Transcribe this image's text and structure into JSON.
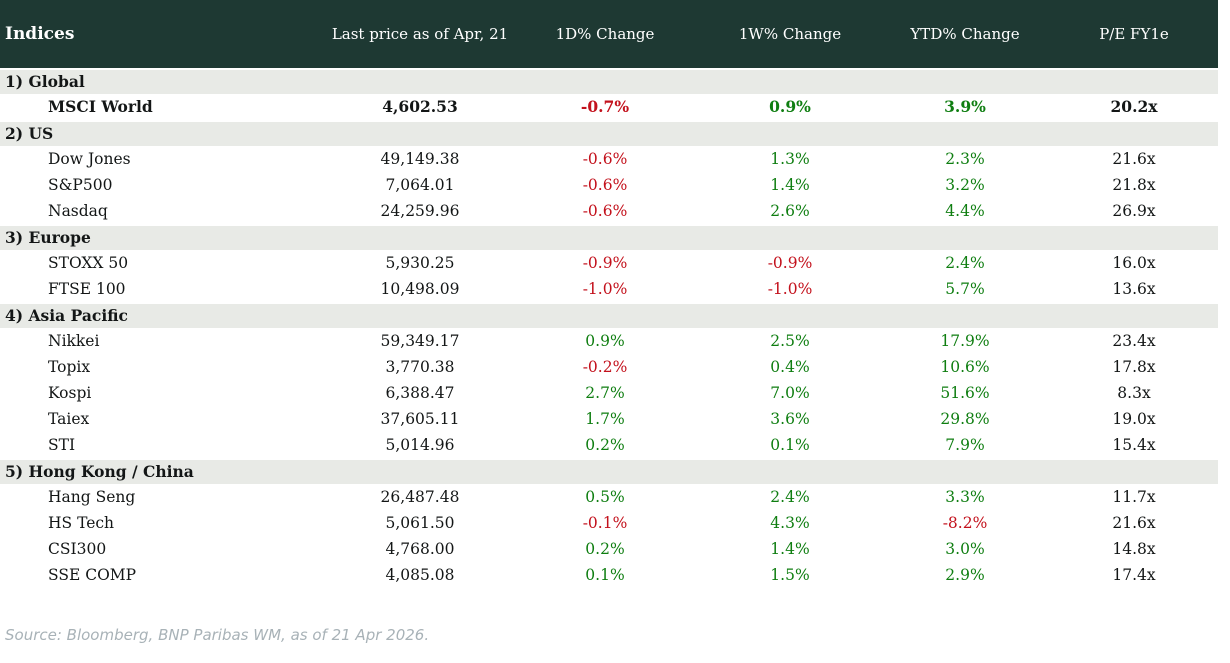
{
  "title": "Indices",
  "chart_data": {
    "type": "table",
    "columns": [
      "Indices",
      "Last price as of Apr, 21",
      "1D% Change",
      "1W% Change",
      "YTD% Change",
      "P/E FY1e"
    ],
    "sections": [
      {
        "label": "1) Global",
        "rows": [
          {
            "name": "MSCI World",
            "bold": true,
            "values": [
              "4,602.53",
              "-0.7%",
              "0.9%",
              "3.9%",
              "20.2x"
            ]
          }
        ]
      },
      {
        "label": "2) US",
        "rows": [
          {
            "name": "Dow Jones",
            "bold": false,
            "values": [
              "49,149.38",
              "-0.6%",
              "1.3%",
              "2.3%",
              "21.6x"
            ]
          },
          {
            "name": "S&P500",
            "bold": false,
            "values": [
              "7,064.01",
              "-0.6%",
              "1.4%",
              "3.2%",
              "21.8x"
            ]
          },
          {
            "name": "Nasdaq",
            "bold": false,
            "values": [
              "24,259.96",
              "-0.6%",
              "2.6%",
              "4.4%",
              "26.9x"
            ]
          }
        ]
      },
      {
        "label": "3) Europe",
        "rows": [
          {
            "name": "STOXX 50",
            "bold": false,
            "values": [
              "5,930.25",
              "-0.9%",
              "-0.9%",
              "2.4%",
              "16.0x"
            ]
          },
          {
            "name": "FTSE 100",
            "bold": false,
            "values": [
              "10,498.09",
              "-1.0%",
              "-1.0%",
              "5.7%",
              "13.6x"
            ]
          }
        ]
      },
      {
        "label": "4) Asia Pacific",
        "rows": [
          {
            "name": "Nikkei",
            "bold": false,
            "values": [
              "59,349.17",
              "0.9%",
              "2.5%",
              "17.9%",
              "23.4x"
            ]
          },
          {
            "name": "Topix",
            "bold": false,
            "values": [
              "3,770.38",
              "-0.2%",
              "0.4%",
              "10.6%",
              "17.8x"
            ]
          },
          {
            "name": "Kospi",
            "bold": false,
            "values": [
              "6,388.47",
              "2.7%",
              "7.0%",
              "51.6%",
              "8.3x"
            ]
          },
          {
            "name": "Taiex",
            "bold": false,
            "values": [
              "37,605.11",
              "1.7%",
              "3.6%",
              "29.8%",
              "19.0x"
            ]
          },
          {
            "name": "STI",
            "bold": false,
            "values": [
              "5,014.96",
              "0.2%",
              "0.1%",
              "7.9%",
              "15.4x"
            ]
          }
        ]
      },
      {
        "label": "5) Hong Kong / China",
        "rows": [
          {
            "name": "Hang Seng",
            "bold": false,
            "values": [
              "26,487.48",
              "0.5%",
              "2.4%",
              "3.3%",
              "11.7x"
            ]
          },
          {
            "name": "HS Tech",
            "bold": false,
            "values": [
              "5,061.50",
              "-0.1%",
              "4.3%",
              "-8.2%",
              "21.6x"
            ]
          },
          {
            "name": "CSI300",
            "bold": false,
            "values": [
              "4,768.00",
              "0.2%",
              "1.4%",
              "3.0%",
              "14.8x"
            ]
          },
          {
            "name": "SSE COMP",
            "bold": false,
            "values": [
              "4,085.08",
              "0.1%",
              "1.5%",
              "2.9%",
              "17.4x"
            ]
          }
        ]
      }
    ]
  },
  "footer": {
    "source": "Source: Bloomberg, BNP Paribas WM, as of 21 Apr 2026."
  },
  "colors": {
    "header_bg": "#1e3933",
    "section_bg": "#e8eae6",
    "positive": "#0f7e11",
    "negative": "#c3111c",
    "source_text": "#a8b2b7"
  }
}
